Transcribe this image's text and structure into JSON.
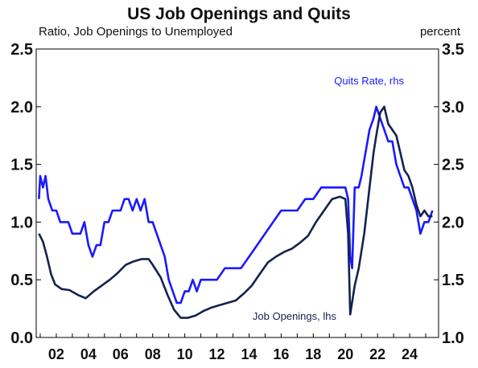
{
  "chart_data": {
    "type": "line",
    "title": "US Job Openings and Quits",
    "subtitle_left": "Ratio, Job Openings to Unemployed",
    "subtitle_right": "percent",
    "x_range": [
      2000.75,
      2025.8
    ],
    "x_ticks": [
      "02",
      "04",
      "06",
      "08",
      "10",
      "12",
      "14",
      "16",
      "18",
      "20",
      "22",
      "24"
    ],
    "x_tick_years": [
      2002,
      2004,
      2006,
      2008,
      2010,
      2012,
      2014,
      2016,
      2018,
      2020,
      2022,
      2024
    ],
    "y_left": {
      "range": [
        0,
        2.5
      ],
      "ticks": [
        "0.0",
        "0.5",
        "1.0",
        "1.5",
        "2.0",
        "2.5"
      ]
    },
    "y_right": {
      "range": [
        1.0,
        3.5
      ],
      "ticks": [
        "1.0",
        "1.5",
        "2.0",
        "2.5",
        "3.0",
        "3.5"
      ]
    },
    "grid": false,
    "series": [
      {
        "name": "Quits Rate, rhs",
        "axis": "right",
        "color": "#1a1aff",
        "points": [
          [
            2000.92,
            2.2
          ],
          [
            2001.0,
            2.4
          ],
          [
            2001.17,
            2.3
          ],
          [
            2001.33,
            2.4
          ],
          [
            2001.5,
            2.2
          ],
          [
            2001.75,
            2.1
          ],
          [
            2002.0,
            2.1
          ],
          [
            2002.25,
            2.0
          ],
          [
            2002.5,
            2.0
          ],
          [
            2002.75,
            2.0
          ],
          [
            2003.0,
            1.9
          ],
          [
            2003.25,
            1.9
          ],
          [
            2003.5,
            1.9
          ],
          [
            2003.75,
            2.0
          ],
          [
            2004.0,
            1.8
          ],
          [
            2004.25,
            1.7
          ],
          [
            2004.5,
            1.8
          ],
          [
            2004.75,
            1.8
          ],
          [
            2005.0,
            2.0
          ],
          [
            2005.25,
            2.0
          ],
          [
            2005.5,
            2.1
          ],
          [
            2005.75,
            2.1
          ],
          [
            2006.0,
            2.1
          ],
          [
            2006.25,
            2.2
          ],
          [
            2006.5,
            2.2
          ],
          [
            2006.75,
            2.1
          ],
          [
            2007.0,
            2.2
          ],
          [
            2007.25,
            2.1
          ],
          [
            2007.5,
            2.2
          ],
          [
            2007.75,
            2.0
          ],
          [
            2008.0,
            2.0
          ],
          [
            2008.25,
            1.9
          ],
          [
            2008.5,
            1.8
          ],
          [
            2008.75,
            1.7
          ],
          [
            2009.0,
            1.5
          ],
          [
            2009.25,
            1.4
          ],
          [
            2009.5,
            1.3
          ],
          [
            2009.75,
            1.3
          ],
          [
            2010.0,
            1.4
          ],
          [
            2010.25,
            1.4
          ],
          [
            2010.5,
            1.5
          ],
          [
            2010.75,
            1.4
          ],
          [
            2011.0,
            1.5
          ],
          [
            2011.5,
            1.5
          ],
          [
            2012.0,
            1.5
          ],
          [
            2012.5,
            1.6
          ],
          [
            2013.0,
            1.6
          ],
          [
            2013.5,
            1.6
          ],
          [
            2014.0,
            1.7
          ],
          [
            2014.5,
            1.8
          ],
          [
            2015.0,
            1.9
          ],
          [
            2015.5,
            2.0
          ],
          [
            2016.0,
            2.1
          ],
          [
            2016.5,
            2.1
          ],
          [
            2017.0,
            2.1
          ],
          [
            2017.5,
            2.2
          ],
          [
            2018.0,
            2.2
          ],
          [
            2018.5,
            2.3
          ],
          [
            2019.0,
            2.3
          ],
          [
            2019.5,
            2.3
          ],
          [
            2020.0,
            2.3
          ],
          [
            2020.17,
            2.2
          ],
          [
            2020.3,
            1.7
          ],
          [
            2020.42,
            1.6
          ],
          [
            2020.58,
            2.3
          ],
          [
            2020.83,
            2.3
          ],
          [
            2021.0,
            2.4
          ],
          [
            2021.25,
            2.6
          ],
          [
            2021.5,
            2.8
          ],
          [
            2021.75,
            2.9
          ],
          [
            2021.92,
            3.0
          ],
          [
            2022.17,
            2.9
          ],
          [
            2022.42,
            2.8
          ],
          [
            2022.67,
            2.7
          ],
          [
            2022.92,
            2.7
          ],
          [
            2023.17,
            2.5
          ],
          [
            2023.42,
            2.4
          ],
          [
            2023.67,
            2.3
          ],
          [
            2023.92,
            2.3
          ],
          [
            2024.17,
            2.2
          ],
          [
            2024.42,
            2.1
          ],
          [
            2024.67,
            1.9
          ],
          [
            2024.92,
            2.0
          ],
          [
            2025.17,
            2.0
          ],
          [
            2025.42,
            2.1
          ]
        ]
      },
      {
        "name": "Job Openings, lhs",
        "axis": "left",
        "color": "#14224f",
        "points": [
          [
            2000.92,
            0.9
          ],
          [
            2001.17,
            0.83
          ],
          [
            2001.42,
            0.7
          ],
          [
            2001.67,
            0.55
          ],
          [
            2001.92,
            0.46
          ],
          [
            2002.33,
            0.42
          ],
          [
            2002.83,
            0.41
          ],
          [
            2003.33,
            0.37
          ],
          [
            2003.83,
            0.34
          ],
          [
            2004.33,
            0.4
          ],
          [
            2004.83,
            0.45
          ],
          [
            2005.33,
            0.5
          ],
          [
            2005.83,
            0.56
          ],
          [
            2006.33,
            0.63
          ],
          [
            2006.83,
            0.66
          ],
          [
            2007.33,
            0.68
          ],
          [
            2007.75,
            0.68
          ],
          [
            2008.0,
            0.63
          ],
          [
            2008.5,
            0.52
          ],
          [
            2008.92,
            0.37
          ],
          [
            2009.33,
            0.24
          ],
          [
            2009.75,
            0.17
          ],
          [
            2010.17,
            0.17
          ],
          [
            2010.67,
            0.19
          ],
          [
            2011.17,
            0.23
          ],
          [
            2011.67,
            0.26
          ],
          [
            2012.17,
            0.28
          ],
          [
            2012.67,
            0.3
          ],
          [
            2013.17,
            0.32
          ],
          [
            2013.67,
            0.38
          ],
          [
            2014.17,
            0.45
          ],
          [
            2014.67,
            0.55
          ],
          [
            2015.17,
            0.65
          ],
          [
            2015.67,
            0.7
          ],
          [
            2016.17,
            0.74
          ],
          [
            2016.67,
            0.77
          ],
          [
            2017.17,
            0.82
          ],
          [
            2017.67,
            0.88
          ],
          [
            2018.17,
            1.0
          ],
          [
            2018.67,
            1.1
          ],
          [
            2019.17,
            1.2
          ],
          [
            2019.67,
            1.22
          ],
          [
            2020.0,
            1.2
          ],
          [
            2020.17,
            0.9
          ],
          [
            2020.3,
            0.2
          ],
          [
            2020.58,
            0.45
          ],
          [
            2020.83,
            0.6
          ],
          [
            2021.17,
            0.9
          ],
          [
            2021.5,
            1.3
          ],
          [
            2021.75,
            1.6
          ],
          [
            2021.92,
            1.75
          ],
          [
            2022.17,
            1.95
          ],
          [
            2022.42,
            2.0
          ],
          [
            2022.67,
            1.85
          ],
          [
            2022.92,
            1.8
          ],
          [
            2023.17,
            1.75
          ],
          [
            2023.42,
            1.6
          ],
          [
            2023.67,
            1.45
          ],
          [
            2023.92,
            1.4
          ],
          [
            2024.17,
            1.3
          ],
          [
            2024.42,
            1.15
          ],
          [
            2024.67,
            1.05
          ],
          [
            2024.92,
            1.1
          ],
          [
            2025.17,
            1.05
          ],
          [
            2025.42,
            1.05
          ]
        ]
      }
    ],
    "annotations": [
      {
        "text": "Quits Rate, rhs",
        "series": "Quits Rate, rhs"
      },
      {
        "text": "Job Openings, lhs",
        "series": "Job Openings, lhs"
      }
    ]
  }
}
